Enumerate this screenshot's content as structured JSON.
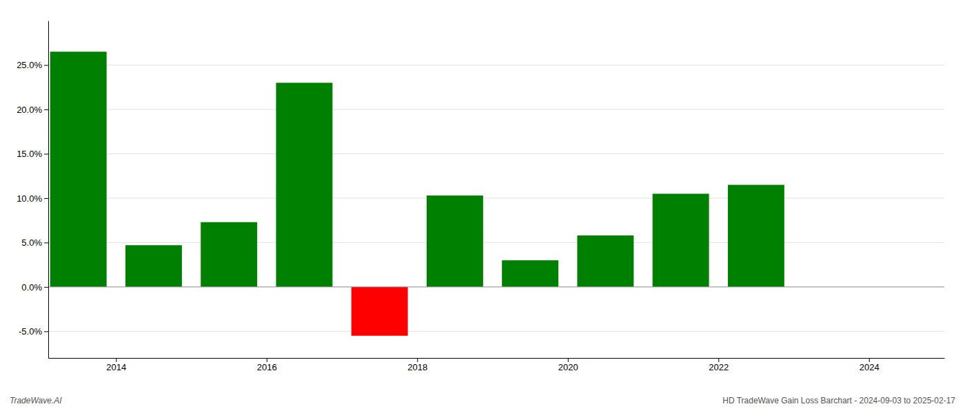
{
  "chart_data": {
    "type": "bar",
    "x": [
      2013,
      2014,
      2015,
      2016,
      2017,
      2018,
      2019,
      2020,
      2021,
      2022
    ],
    "values": [
      26.5,
      4.7,
      7.3,
      23.0,
      -5.5,
      10.3,
      3.0,
      5.8,
      10.5,
      11.5
    ],
    "colors": [
      "#008000",
      "#008000",
      "#008000",
      "#008000",
      "#ff0000",
      "#008000",
      "#008000",
      "#008000",
      "#008000",
      "#008000"
    ],
    "xlim": [
      2012.6,
      2024.5
    ],
    "xticks": [
      {
        "value": 2013.5,
        "label": "2014"
      },
      {
        "value": 2015.5,
        "label": "2016"
      },
      {
        "value": 2017.5,
        "label": "2018"
      },
      {
        "value": 2019.5,
        "label": "2020"
      },
      {
        "value": 2021.5,
        "label": "2022"
      },
      {
        "value": 2023.5,
        "label": "2024"
      }
    ],
    "ylim": [
      -8,
      30
    ],
    "yticks": [
      {
        "value": -5.0,
        "label": "-5.0%"
      },
      {
        "value": 0.0,
        "label": "0.0%"
      },
      {
        "value": 5.0,
        "label": "5.0%"
      },
      {
        "value": 10.0,
        "label": "10.0%"
      },
      {
        "value": 15.0,
        "label": "15.0%"
      },
      {
        "value": 20.0,
        "label": "20.0%"
      },
      {
        "value": 25.0,
        "label": "25.0%"
      }
    ],
    "grid": true,
    "annotations": [
      "TradeWave.AI",
      "HD TradeWave Gain Loss Barchart - 2024-09-03 to 2025-02-17"
    ]
  }
}
